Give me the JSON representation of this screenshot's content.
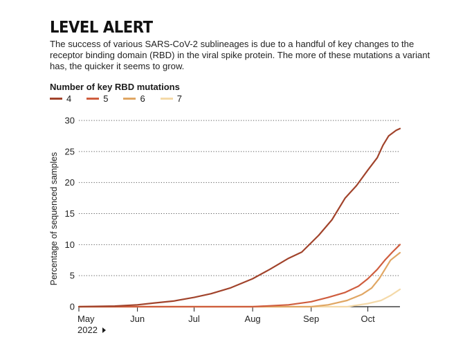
{
  "header": {
    "title": "LEVEL ALERT",
    "subtitle": "The success of various SARS-CoV-2 sublineages is due to a handful of key changes to the receptor binding domain (RBD) in the viral spike protein. The more of these mutations a variant has, the quicker it seems to grow."
  },
  "chart_data": {
    "type": "line",
    "legend_title": "Number of key RBD mutations",
    "legend_placement": "top-left",
    "ylabel": "Percentage of sequenced samples",
    "xlabel": "",
    "ylim": [
      0,
      30
    ],
    "xlim": [
      "2022-05-01",
      "2022-10-18"
    ],
    "yticks": [
      0,
      5,
      10,
      15,
      20,
      25,
      30
    ],
    "xticks": [
      {
        "date": "2022-05-01",
        "label": "May"
      },
      {
        "date": "2022-06-01",
        "label": "Jun"
      },
      {
        "date": "2022-07-01",
        "label": "Jul"
      },
      {
        "date": "2022-08-01",
        "label": "Aug"
      },
      {
        "date": "2022-09-01",
        "label": "Sep"
      },
      {
        "date": "2022-10-01",
        "label": "Oct"
      }
    ],
    "x_year_label": "2022",
    "grid": "horizontal dotted",
    "series": [
      {
        "name": "4",
        "color": "#a1432b",
        "points": [
          [
            "2022-05-01",
            0
          ],
          [
            "2022-05-20",
            0.1
          ],
          [
            "2022-06-01",
            0.3
          ],
          [
            "2022-06-10",
            0.6
          ],
          [
            "2022-06-20",
            0.9
          ],
          [
            "2022-07-01",
            1.5
          ],
          [
            "2022-07-10",
            2.1
          ],
          [
            "2022-07-20",
            3.0
          ],
          [
            "2022-08-01",
            4.5
          ],
          [
            "2022-08-10",
            6.0
          ],
          [
            "2022-08-20",
            7.8
          ],
          [
            "2022-08-27",
            8.8
          ],
          [
            "2022-09-05",
            11.5
          ],
          [
            "2022-09-12",
            14.0
          ],
          [
            "2022-09-19",
            17.5
          ],
          [
            "2022-09-25",
            19.5
          ],
          [
            "2022-10-01",
            22.0
          ],
          [
            "2022-10-06",
            24.0
          ],
          [
            "2022-10-09",
            26.0
          ],
          [
            "2022-10-12",
            27.5
          ],
          [
            "2022-10-16",
            28.4
          ],
          [
            "2022-10-18",
            28.7
          ]
        ]
      },
      {
        "name": "5",
        "color": "#cf5d3e",
        "points": [
          [
            "2022-05-01",
            0
          ],
          [
            "2022-08-01",
            0
          ],
          [
            "2022-08-20",
            0.3
          ],
          [
            "2022-09-01",
            0.8
          ],
          [
            "2022-09-10",
            1.5
          ],
          [
            "2022-09-19",
            2.3
          ],
          [
            "2022-09-26",
            3.3
          ],
          [
            "2022-10-01",
            4.5
          ],
          [
            "2022-10-06",
            6.0
          ],
          [
            "2022-10-10",
            7.5
          ],
          [
            "2022-10-14",
            8.8
          ],
          [
            "2022-10-18",
            10.0
          ]
        ]
      },
      {
        "name": "6",
        "color": "#e0a663",
        "points": [
          [
            "2022-05-01",
            0
          ],
          [
            "2022-09-01",
            0
          ],
          [
            "2022-09-10",
            0.3
          ],
          [
            "2022-09-20",
            1.0
          ],
          [
            "2022-09-28",
            2.0
          ],
          [
            "2022-10-03",
            3.0
          ],
          [
            "2022-10-07",
            4.5
          ],
          [
            "2022-10-10",
            6.0
          ],
          [
            "2022-10-13",
            7.5
          ],
          [
            "2022-10-18",
            8.7
          ]
        ]
      },
      {
        "name": "7",
        "color": "#f4d9a8",
        "points": [
          [
            "2022-05-01",
            0
          ],
          [
            "2022-09-20",
            0
          ],
          [
            "2022-10-01",
            0.5
          ],
          [
            "2022-10-08",
            1.0
          ],
          [
            "2022-10-13",
            1.8
          ],
          [
            "2022-10-18",
            2.8
          ]
        ]
      }
    ]
  }
}
